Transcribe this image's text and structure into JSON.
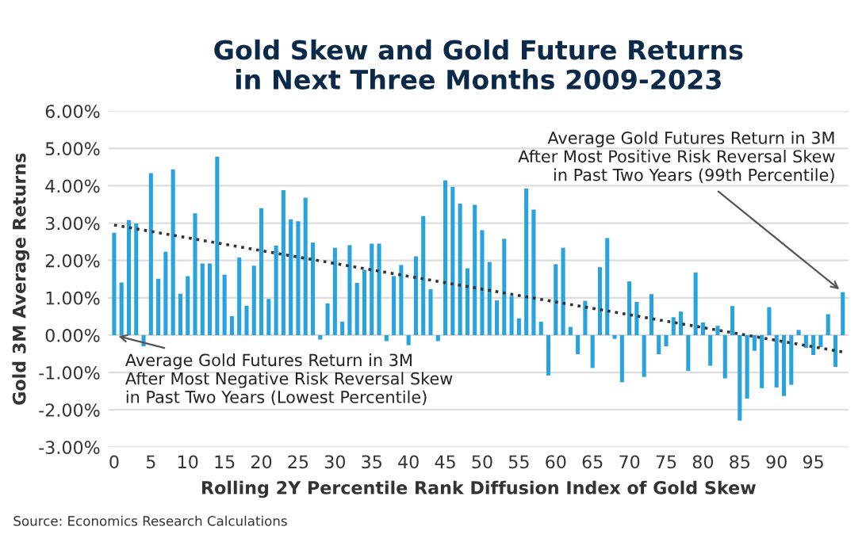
{
  "chart_data": {
    "type": "bar",
    "title": "Gold Skew and Gold Future Returns\nin Next Three Months 2009-2023",
    "xlabel": "Rolling 2Y Percentile Rank Diffusion Index of Gold Skew",
    "ylabel": "Gold 3M Average Returns",
    "x": [
      0,
      1,
      2,
      3,
      4,
      5,
      6,
      7,
      8,
      9,
      10,
      11,
      12,
      13,
      14,
      15,
      16,
      17,
      18,
      19,
      20,
      21,
      22,
      23,
      24,
      25,
      26,
      27,
      28,
      29,
      30,
      31,
      32,
      33,
      34,
      35,
      36,
      37,
      38,
      39,
      40,
      41,
      42,
      43,
      44,
      45,
      46,
      47,
      48,
      49,
      50,
      51,
      52,
      53,
      54,
      55,
      56,
      57,
      58,
      59,
      60,
      61,
      62,
      63,
      64,
      65,
      66,
      67,
      68,
      69,
      70,
      71,
      72,
      73,
      74,
      75,
      76,
      77,
      78,
      79,
      80,
      81,
      82,
      83,
      84,
      85,
      86,
      87,
      88,
      89,
      90,
      91,
      92,
      93,
      94,
      95,
      96,
      97,
      98,
      99
    ],
    "series": [
      {
        "color": "#29a3dd",
        "values": [
          2.74,
          1.41,
          3.08,
          2.99,
          -0.3,
          4.34,
          1.51,
          2.23,
          4.44,
          1.11,
          1.58,
          3.26,
          1.92,
          1.92,
          4.78,
          1.62,
          0.51,
          2.08,
          0.79,
          1.86,
          3.4,
          0.97,
          2.4,
          3.88,
          3.1,
          3.05,
          3.68,
          2.48,
          -0.12,
          0.85,
          2.34,
          0.36,
          2.41,
          1.4,
          1.75,
          2.45,
          2.45,
          -0.16,
          1.58,
          1.88,
          -0.27,
          2.11,
          3.19,
          1.23,
          -0.16,
          4.15,
          3.97,
          3.52,
          1.79,
          3.49,
          2.81,
          1.96,
          0.93,
          2.58,
          1.05,
          0.45,
          3.93,
          3.36,
          0.36,
          -1.08,
          1.9,
          2.34,
          0.22,
          -0.51,
          0.92,
          -0.88,
          1.82,
          2.6,
          -0.1,
          -1.26,
          1.44,
          0.89,
          -1.12,
          1.1,
          -0.51,
          -0.3,
          0.48,
          0.63,
          -0.96,
          1.68,
          0.34,
          -0.82,
          0.25,
          -1.16,
          0.78,
          -2.29,
          -1.7,
          -0.42,
          -1.42,
          0.75,
          -1.4,
          -1.63,
          -1.33,
          0.14,
          -0.34,
          -0.53,
          -0.32,
          0.56,
          -0.85,
          1.15
        ]
      },
      {
        "type": "line",
        "color": "#333333",
        "line_style": "dotted",
        "x": [
          0,
          99
        ],
        "values": [
          2.95,
          -0.45
        ]
      }
    ],
    "xlim": [
      -0.8,
      99.8
    ],
    "xticks": [
      0,
      5,
      10,
      15,
      20,
      25,
      30,
      35,
      40,
      45,
      50,
      55,
      60,
      65,
      70,
      75,
      80,
      85,
      90,
      95
    ],
    "ylim": [
      -3,
      6
    ],
    "yticks": [
      {
        "value": 6,
        "label": "6.00%"
      },
      {
        "value": 5,
        "label": "5.00%"
      },
      {
        "value": 4,
        "label": "4.00%"
      },
      {
        "value": 3,
        "label": "3.00%"
      },
      {
        "value": 2,
        "label": "2.00%"
      },
      {
        "value": 1,
        "label": "1.00%"
      },
      {
        "value": 0,
        "label": "0.00%"
      },
      {
        "value": -1,
        "label": "-1.00%"
      },
      {
        "value": -2,
        "label": "-2.00%"
      },
      {
        "value": -3,
        "label": "-3.00%"
      }
    ],
    "grid": "y",
    "annotations": [
      {
        "text": "Average Gold Futures Return in 3M\nAfter Most Negative Risk Reversal Skew\nin Past Two Years (Lowest Percentile)",
        "x": 0,
        "y": 0
      },
      {
        "text": "Average Gold Futures Return in 3M\nAfter Most Positive Risk Reversal Skew\nin Past Two Years (99th Percentile)",
        "x": 99,
        "y": 1.15
      },
      "Source: Economics Research Calculations"
    ]
  }
}
